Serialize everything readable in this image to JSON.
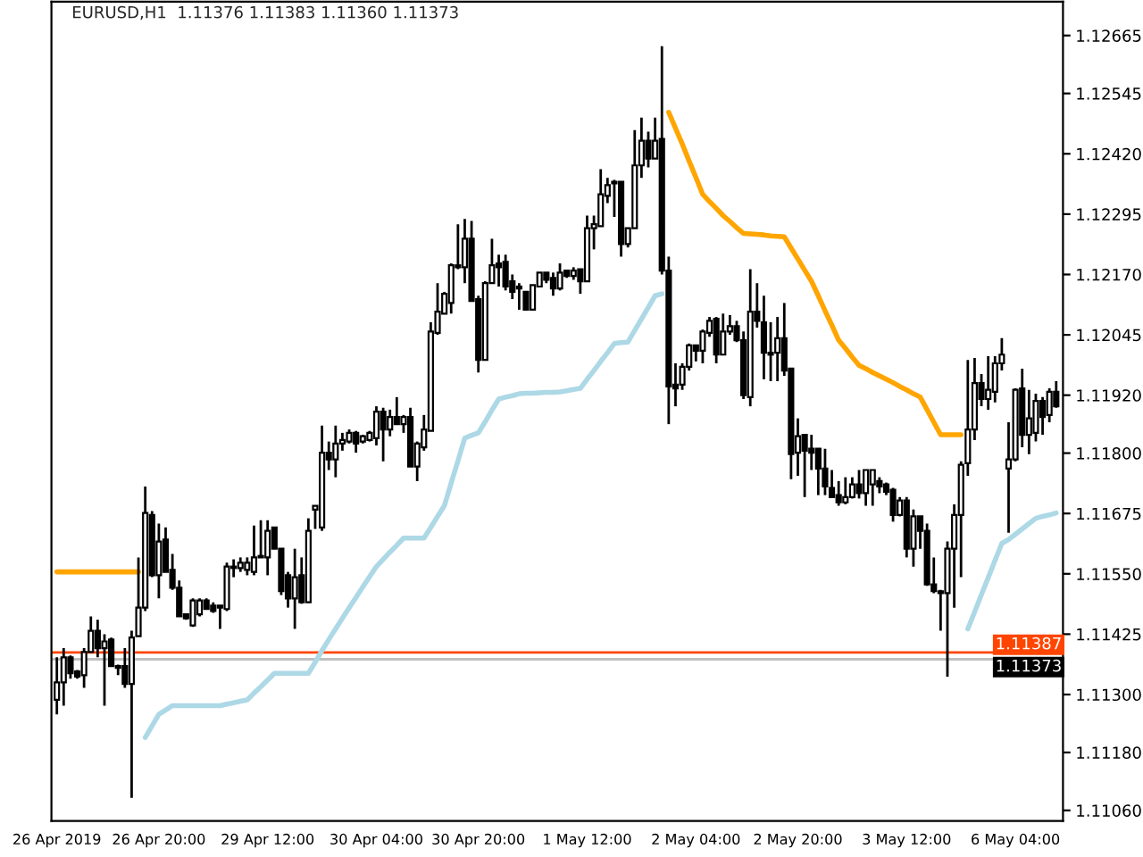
{
  "chart_data": {
    "type": "candlestick",
    "title": "EURUSD,H1  1.11376 1.11383 1.11360 1.11373",
    "categories": [
      "26 Apr 2019",
      null,
      null,
      null,
      null,
      null,
      null,
      null,
      null,
      null,
      null,
      null,
      null,
      null,
      null,
      "26 Apr 20:00",
      null,
      null,
      null,
      null,
      null,
      null,
      null,
      null,
      null,
      null,
      null,
      null,
      null,
      null,
      null,
      "29 Apr 12:00",
      null,
      null,
      null,
      null,
      null,
      null,
      null,
      null,
      null,
      null,
      null,
      null,
      null,
      null,
      null,
      "30 Apr 04:00",
      null,
      null,
      null,
      null,
      null,
      null,
      null,
      null,
      null,
      null,
      null,
      null,
      null,
      null,
      "30 Apr 20:00",
      null,
      null,
      null,
      null,
      null,
      null,
      null,
      null,
      null,
      null,
      null,
      null,
      null,
      null,
      null,
      "1 May 12:00",
      null,
      null,
      null,
      null,
      null,
      null,
      null,
      null,
      null,
      null,
      null,
      null,
      null,
      null,
      null,
      "2 May 04:00",
      null,
      null,
      null,
      null,
      null,
      null,
      null,
      null,
      null,
      null,
      null,
      null,
      null,
      null,
      "2 May 20:00",
      null,
      null,
      null,
      null,
      null,
      null,
      null,
      null,
      null,
      null,
      null,
      null,
      null,
      null,
      null,
      "3 May 12:00",
      null,
      null,
      null,
      null,
      null,
      null,
      null,
      null,
      null,
      null,
      null,
      null,
      null,
      null,
      null,
      "6 May 04:00",
      null,
      null,
      null,
      null,
      null,
      null
    ],
    "ohlc": [
      [
        1.11289,
        1.11377,
        1.11259,
        1.11325
      ],
      [
        1.11325,
        1.11396,
        1.11277,
        1.11377
      ],
      [
        1.11377,
        1.11381,
        1.11333,
        1.11344
      ],
      [
        1.11348,
        1.11351,
        1.11333,
        1.11337
      ],
      [
        1.1134,
        1.11396,
        1.11314,
        1.11388
      ],
      [
        1.11388,
        1.11462,
        1.11388,
        1.11432
      ],
      [
        1.11432,
        1.11455,
        1.11377,
        1.11396
      ],
      [
        1.11396,
        1.11425,
        1.11277,
        1.1141
      ],
      [
        1.11414,
        1.11418,
        1.11359,
        1.11359
      ],
      [
        1.11359,
        1.11362,
        1.1134,
        1.11355
      ],
      [
        1.11359,
        1.11396,
        1.11314,
        1.11322
      ],
      [
        1.11322,
        1.11432,
        1.11086,
        1.11418
      ],
      [
        1.11421,
        1.11584,
        1.11421,
        1.1148
      ],
      [
        1.1148,
        1.11731,
        1.11473,
        1.11676
      ],
      [
        1.11672,
        1.1168,
        1.11543,
        1.11547
      ],
      [
        1.11547,
        1.11654,
        1.11499,
        1.11617
      ],
      [
        1.11621,
        1.11646,
        1.11554,
        1.11554
      ],
      [
        1.11558,
        1.11591,
        1.11517,
        1.11521
      ],
      [
        1.11521,
        1.11536,
        1.11462,
        1.11462
      ],
      [
        1.11466,
        1.11466,
        1.11455,
        1.11458
      ],
      [
        1.11443,
        1.11499,
        1.1144,
        1.11495
      ],
      [
        1.11466,
        1.11499,
        1.11462,
        1.11495
      ],
      [
        1.11495,
        1.11499,
        1.11477,
        1.11477
      ],
      [
        1.11484,
        1.11491,
        1.11469,
        1.11473
      ],
      [
        1.11484,
        1.11484,
        1.11436,
        1.1148
      ],
      [
        1.11477,
        1.11573,
        1.11473,
        1.11565
      ],
      [
        1.11565,
        1.1158,
        1.11543,
        1.11562
      ],
      [
        1.11562,
        1.11584,
        1.11554,
        1.11573
      ],
      [
        1.11558,
        1.11584,
        1.11547,
        1.11573
      ],
      [
        1.11554,
        1.1165,
        1.11547,
        1.11584
      ],
      [
        1.11584,
        1.11661,
        1.11584,
        1.11587
      ],
      [
        1.11584,
        1.11661,
        1.11547,
        1.11639
      ],
      [
        1.11646,
        1.11646,
        1.11602,
        1.11602
      ],
      [
        1.11602,
        1.11602,
        1.11506,
        1.11514
      ],
      [
        1.11547,
        1.11554,
        1.1148,
        1.11499
      ],
      [
        1.11499,
        1.11602,
        1.11436,
        1.11543
      ],
      [
        1.11547,
        1.11584,
        1.11488,
        1.11491
      ],
      [
        1.11491,
        1.11665,
        1.11491,
        1.11639
      ],
      [
        1.11683,
        1.11691,
        1.11643,
        1.11691
      ],
      [
        1.11646,
        1.11857,
        1.11639,
        1.11801
      ],
      [
        1.11801,
        1.11824,
        1.11765,
        1.11787
      ],
      [
        1.11787,
        1.11857,
        1.1175,
        1.1182
      ],
      [
        1.1182,
        1.11842,
        1.11805,
        1.11827
      ],
      [
        1.11824,
        1.11849,
        1.1182,
        1.11842
      ],
      [
        1.11842,
        1.11846,
        1.11801,
        1.1182
      ],
      [
        1.11824,
        1.11838,
        1.1182,
        1.11835
      ],
      [
        1.11827,
        1.11846,
        1.11824,
        1.11842
      ],
      [
        1.11831,
        1.11897,
        1.11816,
        1.11886
      ],
      [
        1.11886,
        1.11894,
        1.11783,
        1.11849
      ],
      [
        1.11849,
        1.1189,
        1.11835,
        1.11875
      ],
      [
        1.11875,
        1.11916,
        1.1186,
        1.1186
      ],
      [
        1.1186,
        1.11879,
        1.11842,
        1.11875
      ],
      [
        1.11875,
        1.11894,
        1.11772,
        1.11772
      ],
      [
        1.11772,
        1.11824,
        1.11742,
        1.1182
      ],
      [
        1.11812,
        1.11879,
        1.11805,
        1.11849
      ],
      [
        1.11846,
        1.12071,
        1.11846,
        1.12052
      ],
      [
        1.12049,
        1.12152,
        1.12045,
        1.12093
      ],
      [
        1.12089,
        1.12134,
        1.12089,
        1.1213
      ],
      [
        1.12111,
        1.12193,
        1.12089,
        1.12189
      ],
      [
        1.12185,
        1.12274,
        1.12181,
        1.12189
      ],
      [
        1.12185,
        1.12285,
        1.12152,
        1.12244
      ],
      [
        1.12244,
        1.12281,
        1.12115,
        1.12115
      ],
      [
        1.12119,
        1.12126,
        1.11967,
        1.11993
      ],
      [
        1.11993,
        1.12156,
        1.11993,
        1.12152
      ],
      [
        1.12152,
        1.12244,
        1.12152,
        1.12189
      ],
      [
        1.12193,
        1.12211,
        1.12145,
        1.12185
      ],
      [
        1.12196,
        1.12211,
        1.12137,
        1.12145
      ],
      [
        1.12156,
        1.1217,
        1.12119,
        1.12134
      ],
      [
        1.12145,
        1.12152,
        1.12097,
        1.12141
      ],
      [
        1.12134,
        1.12134,
        1.12097,
        1.12097
      ],
      [
        1.12097,
        1.12148,
        1.12097,
        1.12148
      ],
      [
        1.12145,
        1.12174,
        1.12145,
        1.12174
      ],
      [
        1.12174,
        1.12174,
        1.12152,
        1.12159
      ],
      [
        1.12163,
        1.12174,
        1.12126,
        1.12141
      ],
      [
        1.12141,
        1.12193,
        1.12137,
        1.12174
      ],
      [
        1.12178,
        1.12178,
        1.12163,
        1.12167
      ],
      [
        1.12167,
        1.12185,
        1.12159,
        1.12178
      ],
      [
        1.12181,
        1.12181,
        1.1213,
        1.12156
      ],
      [
        1.12156,
        1.12292,
        1.12156,
        1.12266
      ],
      [
        1.12266,
        1.12292,
        1.12222,
        1.12274
      ],
      [
        1.1227,
        1.12388,
        1.1227,
        1.12336
      ],
      [
        1.12333,
        1.1237,
        1.12318,
        1.12355
      ],
      [
        1.12362,
        1.12366,
        1.12289,
        1.12359
      ],
      [
        1.12362,
        1.12362,
        1.12207,
        1.12233
      ],
      [
        1.12233,
        1.12266,
        1.12226,
        1.12266
      ],
      [
        1.12266,
        1.12469,
        1.12266,
        1.12396
      ],
      [
        1.12396,
        1.12495,
        1.1237,
        1.12447
      ],
      [
        1.12447,
        1.12466,
        1.12392,
        1.1241
      ],
      [
        1.1241,
        1.12495,
        1.1241,
        1.12447
      ],
      [
        1.12451,
        1.12643,
        1.1217,
        1.12178
      ],
      [
        1.12178,
        1.12207,
        1.1186,
        1.11938
      ],
      [
        1.11942,
        1.11986,
        1.11897,
        1.11934
      ],
      [
        1.11942,
        1.11986,
        1.11931,
        1.11979
      ],
      [
        1.11979,
        1.12027,
        1.11971,
        1.12023
      ],
      [
        1.12023,
        1.12023,
        1.1199,
        1.12012
      ],
      [
        1.12012,
        1.12056,
        1.11986,
        1.12052
      ],
      [
        1.12049,
        1.12082,
        1.12041,
        1.12074
      ],
      [
        1.12078,
        1.12082,
        1.11986,
        1.12004
      ],
      [
        1.12004,
        1.12089,
        1.12004,
        1.12052
      ],
      [
        1.12052,
        1.12086,
        1.12045,
        1.12063
      ],
      [
        1.12063,
        1.12074,
        1.1203,
        1.12034
      ],
      [
        1.12034,
        1.12052,
        1.11912,
        1.1192
      ],
      [
        1.11916,
        1.12181,
        1.11897,
        1.12093
      ],
      [
        1.12093,
        1.12152,
        1.1206,
        1.12074
      ],
      [
        1.12071,
        1.12126,
        1.11953,
        1.12008
      ],
      [
        1.12008,
        1.12071,
        1.11949,
        1.12004
      ],
      [
        1.12008,
        1.12082,
        1.11949,
        1.12038
      ],
      [
        1.12038,
        1.12111,
        1.1196,
        1.11971
      ],
      [
        1.11975,
        1.11975,
        1.11746,
        1.11798
      ],
      [
        1.11801,
        1.11872,
        1.11753,
        1.11835
      ],
      [
        1.11838,
        1.11838,
        1.11709,
        1.11805
      ],
      [
        1.11809,
        1.11838,
        1.11765,
        1.11801
      ],
      [
        1.11809,
        1.11809,
        1.11713,
        1.11768
      ],
      [
        1.11768,
        1.11809,
        1.11713,
        1.11731
      ],
      [
        1.11728,
        1.11765,
        1.11709,
        1.11709
      ],
      [
        1.11713,
        1.11742,
        1.11691,
        1.11698
      ],
      [
        1.11698,
        1.1175,
        1.11694,
        1.11709
      ],
      [
        1.11709,
        1.1175,
        1.11706,
        1.11735
      ],
      [
        1.11735,
        1.11765,
        1.11706,
        1.11717
      ],
      [
        1.11717,
        1.11765,
        1.11691,
        1.11765
      ],
      [
        1.11735,
        1.11765,
        1.11691,
        1.11765
      ],
      [
        1.11742,
        1.1175,
        1.11717,
        1.11731
      ],
      [
        1.11735,
        1.11739,
        1.11713,
        1.1172
      ],
      [
        1.11724,
        1.11728,
        1.11658,
        1.11672
      ],
      [
        1.11672,
        1.11709,
        1.11669,
        1.11702
      ],
      [
        1.11702,
        1.11709,
        1.11584,
        1.11602
      ],
      [
        1.11602,
        1.11683,
        1.11565,
        1.11669
      ],
      [
        1.11669,
        1.11669,
        1.11602,
        1.11639
      ],
      [
        1.11639,
        1.11654,
        1.11525,
        1.11528
      ],
      [
        1.11528,
        1.11584,
        1.1151,
        1.11514
      ],
      [
        1.11514,
        1.11517,
        1.11432,
        1.1151
      ],
      [
        1.1151,
        1.11617,
        1.11337,
        1.11602
      ],
      [
        1.11602,
        1.11694,
        1.1148,
        1.11672
      ],
      [
        1.11672,
        1.11783,
        1.11543,
        1.11776
      ],
      [
        1.11779,
        1.11993,
        1.11753,
        1.11849
      ],
      [
        1.11849,
        1.11997,
        1.11827,
        1.11945
      ],
      [
        1.11945,
        1.11964,
        1.11897,
        1.11912
      ],
      [
        1.11912,
        1.12001,
        1.1189,
        1.11931
      ],
      [
        1.11927,
        1.12001,
        1.11905,
        1.11986
      ],
      [
        1.11986,
        1.12038,
        1.11971,
        1.12004
      ],
      [
        1.11768,
        1.11864,
        1.11635,
        1.11787
      ],
      [
        1.11787,
        1.11934,
        1.11783,
        1.11931
      ],
      [
        1.11934,
        1.11975,
        1.11812,
        1.11838
      ],
      [
        1.11838,
        1.11931,
        1.11798,
        1.11872
      ],
      [
        1.11842,
        1.11923,
        1.11824,
        1.11908
      ],
      [
        1.11908,
        1.11916,
        1.11838,
        1.11875
      ],
      [
        1.11879,
        1.11934,
        1.11864,
        1.11927
      ],
      [
        1.11927,
        1.11949,
        1.11894,
        1.11897
      ]
    ],
    "series": [
      {
        "type": "line",
        "color": "#ffa500",
        "values": [
          1.11554,
          1.11554,
          1.11554,
          1.11554,
          1.11554,
          1.11554,
          1.11554,
          1.11554,
          1.11554,
          1.11554,
          1.11554,
          1.11554,
          1.11554,
          null,
          null,
          null,
          null,
          null,
          null,
          null,
          null,
          null,
          null,
          null,
          null,
          null,
          null,
          null,
          null,
          null,
          null,
          null,
          null,
          null,
          null,
          null,
          null,
          null,
          null,
          null,
          null,
          null,
          null,
          null,
          null,
          null,
          null,
          null,
          null,
          null,
          null,
          null,
          null,
          null,
          null,
          null,
          null,
          null,
          null,
          null,
          null,
          null,
          null,
          null,
          null,
          null,
          null,
          null,
          null,
          null,
          null,
          null,
          null,
          null,
          null,
          null,
          null,
          null,
          null,
          null,
          null,
          null,
          null,
          null,
          null,
          null,
          null,
          null,
          null,
          null,
          1.12506,
          1.12473,
          1.1244,
          1.12405,
          1.12371,
          1.12336,
          1.12321,
          1.12307,
          1.12292,
          1.1228,
          1.12267,
          1.12255,
          1.12254,
          1.12253,
          1.12252,
          1.1225,
          1.12249,
          1.12248,
          1.12225,
          1.12202,
          1.12179,
          1.12156,
          1.12126,
          1.12095,
          1.12065,
          1.12034,
          1.12017,
          1.11999,
          1.11982,
          1.11975,
          1.11967,
          1.1196,
          1.11953,
          1.11946,
          1.11938,
          1.11931,
          1.11923,
          1.11916,
          1.1189,
          1.11864,
          1.11838,
          1.11838,
          1.11838,
          1.11838,
          null,
          null,
          null,
          null,
          null,
          null,
          null,
          null,
          null,
          null,
          null,
          null,
          null,
          null
        ]
      },
      {
        "type": "line",
        "color": "#add8e6",
        "values": [
          null,
          null,
          null,
          null,
          null,
          null,
          null,
          null,
          null,
          null,
          null,
          null,
          null,
          1.11211,
          1.11235,
          1.11259,
          1.11268,
          1.11277,
          1.11277,
          1.11277,
          1.11277,
          1.11277,
          1.11277,
          1.11277,
          1.11277,
          1.1128,
          1.11283,
          1.11286,
          1.11289,
          1.11303,
          1.11316,
          1.1133,
          1.11344,
          1.11344,
          1.11344,
          1.11344,
          1.11344,
          1.11344,
          1.11367,
          1.11391,
          1.11414,
          1.11436,
          1.11458,
          1.1148,
          1.11501,
          1.11523,
          1.11544,
          1.11565,
          1.1158,
          1.11595,
          1.11609,
          1.11624,
          1.11624,
          1.11624,
          1.11624,
          1.11646,
          1.11669,
          1.11691,
          1.11738,
          1.11784,
          1.11831,
          1.11837,
          1.11842,
          1.11865,
          1.11889,
          1.11912,
          1.11916,
          1.11919,
          1.11923,
          1.11924,
          1.11924,
          1.11925,
          1.11926,
          1.11926,
          1.11927,
          1.11929,
          1.11932,
          1.11934,
          1.11953,
          1.11971,
          1.1199,
          1.12008,
          1.12027,
          1.12029,
          1.1203,
          1.12054,
          1.12078,
          1.12102,
          1.12126,
          1.1213,
          null,
          null,
          null,
          null,
          null,
          null,
          null,
          null,
          null,
          null,
          null,
          null,
          null,
          null,
          null,
          null,
          null,
          null,
          null,
          null,
          null,
          null,
          null,
          null,
          null,
          null,
          null,
          null,
          null,
          null,
          null,
          null,
          null,
          null,
          null,
          null,
          null,
          null,
          null,
          null,
          null,
          null,
          null,
          null,
          1.11436,
          1.11471,
          1.11507,
          1.11542,
          1.11578,
          1.11613,
          1.11621,
          1.11632,
          1.11643,
          1.11654,
          1.11665,
          1.11669,
          1.11672,
          1.11676
        ]
      }
    ],
    "ref_lines": [
      {
        "axis": "y",
        "value": 1.11387,
        "label": "1.11387",
        "color": "#ff4500"
      },
      {
        "axis": "y",
        "value": 1.11373,
        "label": "1.11373",
        "color": "#c0c0c0"
      }
    ],
    "ylim": [
      1.11038,
      1.12735
    ],
    "yticks": [
      {
        "value": 1.12665,
        "label": "1.12665"
      },
      {
        "value": 1.12545,
        "label": "1.12545"
      },
      {
        "value": 1.1242,
        "label": "1.12420"
      },
      {
        "value": 1.12295,
        "label": "1.12295"
      },
      {
        "value": 1.1217,
        "label": "1.12170"
      },
      {
        "value": 1.12045,
        "label": "1.12045"
      },
      {
        "value": 1.1192,
        "label": "1.11920"
      },
      {
        "value": 1.118,
        "label": "1.11800"
      },
      {
        "value": 1.11675,
        "label": "1.11675"
      },
      {
        "value": 1.1155,
        "label": "1.11550"
      },
      {
        "value": 1.11425,
        "label": "1.11425"
      },
      {
        "value": 1.113,
        "label": "1.11300"
      },
      {
        "value": 1.1118,
        "label": "1.11180"
      },
      {
        "value": 1.1106,
        "label": "1.11060"
      }
    ]
  }
}
